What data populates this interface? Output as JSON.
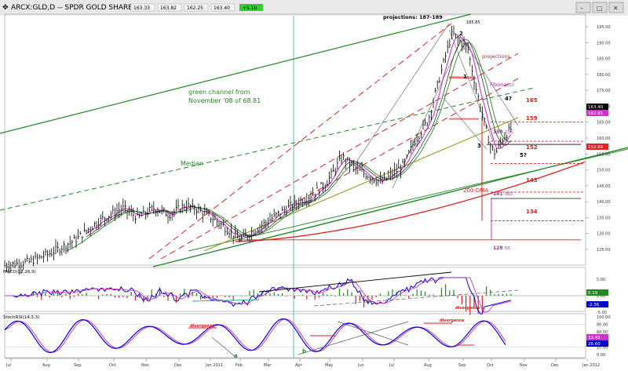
{
  "header": {
    "symbol_title": "ARCX:GLD,D -- SPDR GOLD SHARES",
    "quote_values": [
      "163.33",
      "163.82",
      "162.25",
      "163.40"
    ],
    "quote_change": "+5.10",
    "window_buttons": [
      "minimize-icon",
      "maximize-icon",
      "close-icon"
    ]
  },
  "chart_data": {
    "type": "line",
    "panels": [
      {
        "name": "price",
        "title": "ARCX:GLD,D -- SPDR GOLD SHARES",
        "y_ticks": [
          "195.00",
          "190.00",
          "185.00",
          "180.00",
          "175.00",
          "170.00",
          "165.00",
          "160.00",
          "155.00",
          "150.00",
          "145.00",
          "140.00",
          "135.00",
          "130.00",
          "125.00"
        ],
        "last_price_labels": [
          {
            "value": "163.40",
            "color": "#000000"
          },
          {
            "value": "162.91",
            "color": "#cc33cc"
          },
          {
            "value": "152.69",
            "color": "#dd2222"
          }
        ],
        "approx_price_path": [
          [
            0,
            120
          ],
          [
            30,
            121
          ],
          [
            60,
            124
          ],
          [
            90,
            128
          ],
          [
            120,
            134
          ],
          [
            150,
            138
          ],
          [
            170,
            135
          ],
          [
            190,
            138
          ],
          [
            210,
            136
          ],
          [
            230,
            139
          ],
          [
            250,
            137
          ],
          [
            270,
            134
          ],
          [
            300,
            128
          ],
          [
            330,
            133
          ],
          [
            360,
            138
          ],
          [
            390,
            142
          ],
          [
            410,
            146
          ],
          [
            430,
            154
          ],
          [
            450,
            150
          ],
          [
            480,
            146
          ],
          [
            510,
            152
          ],
          [
            520,
            158
          ],
          [
            540,
            166
          ],
          [
            555,
            180
          ],
          [
            570,
            193
          ],
          [
            590,
            188
          ],
          [
            600,
            176
          ],
          [
            610,
            166
          ],
          [
            618,
            158
          ],
          [
            625,
            155
          ],
          [
            635,
            160
          ],
          [
            645,
            163
          ]
        ],
        "annotations": [
          {
            "text": "projections:   187-189",
            "color": "#000000"
          },
          {
            "text": "185.85",
            "color": "#000000"
          },
          {
            "text": "2",
            "color": "#000000"
          },
          {
            "text": "1",
            "color": "#000000"
          },
          {
            "text": "projections",
            "color": "#cc2222"
          },
          {
            "text": "Fibonacci",
            "color": "#993399"
          },
          {
            "text": "4?",
            "color": "#000000"
          },
          {
            "text": "165",
            "color": "#cc2222"
          },
          {
            "text": "159",
            "color": "#cc2222"
          },
          {
            "text": "158",
            "color": "#993399"
          },
          {
            "text": ".236",
            "color": "#993399"
          },
          {
            "text": "3",
            "color": "#000000"
          },
          {
            "text": "5?",
            "color": "#000000"
          },
          {
            "text": "152",
            "color": "#cc2222"
          },
          {
            "text": "200-DMA",
            "color": "#cc2222"
          },
          {
            "text": "143",
            "color": "#cc2222"
          },
          {
            "text": "141",
            "color": "#993399"
          },
          {
            "text": ".382",
            "color": "#993399"
          },
          {
            "text": "134",
            "color": "#cc2222"
          },
          {
            "text": "128",
            "color": "#993399"
          },
          {
            "text": ".50",
            "color": "#993399"
          },
          {
            "text": "green channel from",
            "color": "#228822"
          },
          {
            "text": "November '08 of 68.81",
            "color": "#228822"
          },
          {
            "text": "Median",
            "color": "#228822"
          }
        ],
        "levels": [
          165,
          159,
          158,
          152,
          143,
          141,
          134,
          128
        ]
      },
      {
        "name": "macd",
        "title": "MACD(12,26,9)",
        "y_ticks": [
          "5.00",
          "0.00",
          "-5.00"
        ],
        "last_value_labels": [
          {
            "value": "0.19",
            "color": "#228822"
          },
          {
            "value": "-2.36",
            "color": "#0000cc"
          }
        ],
        "annotations": [
          {
            "text": "divergence",
            "color": "#cc2222"
          }
        ]
      },
      {
        "name": "stochrsi",
        "title": "StochRSI(14,3,3)",
        "y_ticks": [
          "100.00",
          "80.00",
          "60.00",
          "40.00",
          "20.00",
          "0.00"
        ],
        "last_value_labels": [
          {
            "value": "33.45",
            "color": "#cc33cc"
          },
          {
            "value": "26.60",
            "color": "#0000cc"
          }
        ],
        "annotations": [
          {
            "text": "divergence",
            "color": "#cc2222"
          },
          {
            "text": "divergence",
            "color": "#cc2222"
          },
          {
            "text": "a",
            "color": "#228822"
          },
          {
            "text": "b",
            "color": "#228822"
          }
        ]
      }
    ],
    "x_ticks": [
      "Jul",
      "Aug",
      "Sep",
      "Oct",
      "Nov",
      "Dec",
      "Jan 2011",
      "Feb",
      "Mar",
      "Apr",
      "May",
      "Jun",
      "Jul",
      "Aug",
      "Sep",
      "Oct",
      "Nov",
      "Dec",
      "Jan 2012"
    ],
    "colors": {
      "price_bars": "#000000",
      "ma_fast": "#cc33cc",
      "ma_slow": "#333333",
      "dma200": "#dd2222",
      "channel": "#228822",
      "median": "#228822",
      "fan_lines": "#dd2222",
      "olive_line": "#999922",
      "macd_line": "#0000cc",
      "signal_line": "#cc33cc",
      "histogram_pos": "#228822",
      "histogram_neg": "#dd2222",
      "stoch_k": "#0000cc",
      "stoch_d": "#cc33cc"
    }
  }
}
